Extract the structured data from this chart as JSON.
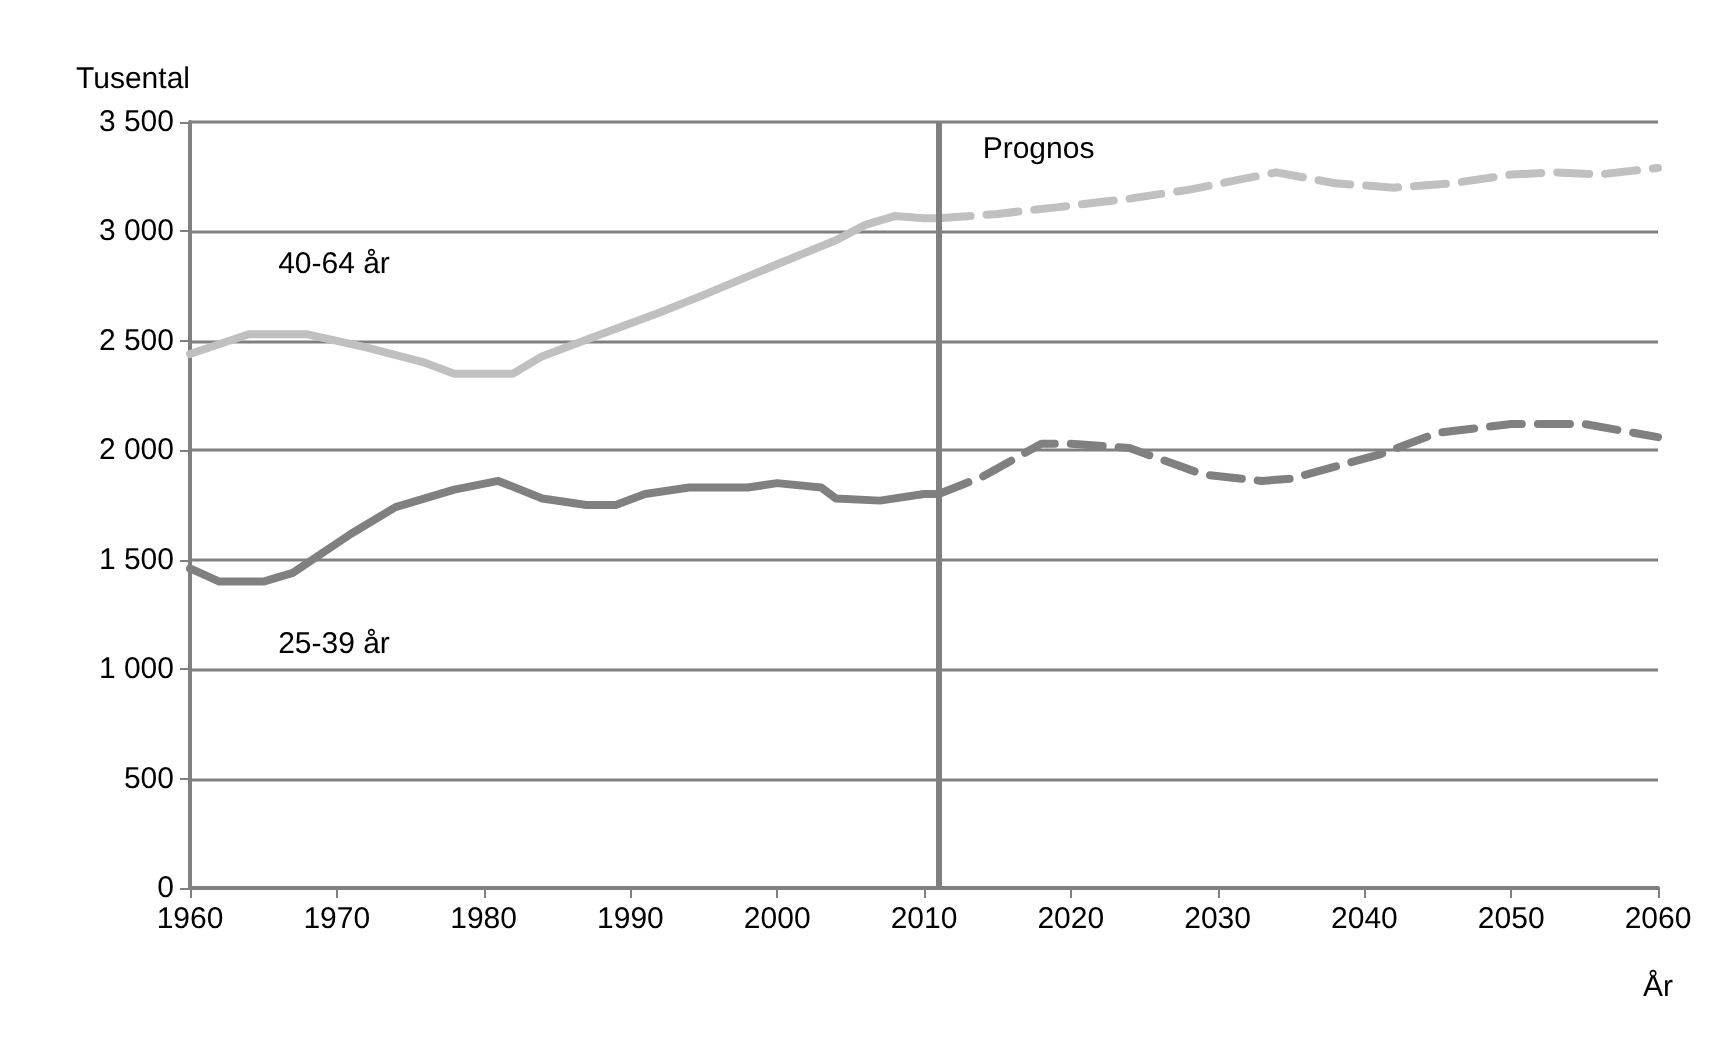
{
  "chart_data": {
    "type": "line",
    "ylabel": "Tusental",
    "xlabel": "År",
    "xlim": [
      1960,
      2060
    ],
    "xticks": [
      1960,
      1970,
      1980,
      1990,
      2000,
      2010,
      2020,
      2030,
      2040,
      2050,
      2060
    ],
    "ylim": [
      0,
      3500
    ],
    "yticks": [
      0,
      500,
      {
        "value": 1000,
        "label": "1 000"
      },
      {
        "value": 1500,
        "label": "1 500"
      },
      {
        "value": 2000,
        "label": "2 000"
      },
      {
        "value": 2500,
        "label": "2 500"
      },
      {
        "value": 3000,
        "label": "3 000"
      },
      {
        "value": 3500,
        "label": "3 500"
      }
    ],
    "grid": "y",
    "marker": "none",
    "series": [
      {
        "name": "40-64 år",
        "color": "#c0c0c0",
        "line_style": "solid",
        "x": [
          1960,
          1964,
          1968,
          1972,
          1976,
          1978,
          1982,
          1984,
          1988,
          1992,
          1995,
          2000,
          2004,
          2006,
          2008,
          2010,
          2011
        ],
        "values": [
          2440,
          2530,
          2530,
          2470,
          2400,
          2350,
          2350,
          2430,
          2530,
          2630,
          2710,
          2850,
          2960,
          3030,
          3070,
          3060,
          3060
        ]
      },
      {
        "color": "#c0c0c0",
        "line_style": "dashed",
        "x": [
          2011,
          2015,
          2019,
          2024,
          2028,
          2034,
          2038,
          2042,
          2046,
          2050,
          2053,
          2056,
          2060
        ],
        "values": [
          3060,
          3080,
          3110,
          3150,
          3190,
          3270,
          3220,
          3200,
          3220,
          3260,
          3270,
          3260,
          3290
        ]
      },
      {
        "name": "25-39 år",
        "color": "#808080",
        "line_style": "solid",
        "x": [
          1960,
          1962,
          1965,
          1967,
          1971,
          1974,
          1978,
          1981,
          1984,
          1987,
          1989,
          1991,
          1994,
          1998,
          2000,
          2003,
          2004,
          2007,
          2010,
          2011
        ],
        "values": [
          1460,
          1400,
          1400,
          1440,
          1620,
          1740,
          1820,
          1860,
          1780,
          1750,
          1750,
          1800,
          1830,
          1830,
          1850,
          1830,
          1780,
          1770,
          1800,
          1800
        ]
      },
      {
        "color": "#808080",
        "line_style": "dashed",
        "x": [
          2011,
          2014,
          2018,
          2020,
          2024,
          2029,
          2033,
          2035,
          2041,
          2045,
          2050,
          2055,
          2060
        ],
        "values": [
          1800,
          1880,
          2030,
          2030,
          2010,
          1890,
          1860,
          1870,
          1980,
          2080,
          2120,
          2120,
          2060
        ]
      }
    ],
    "ref_lines": [
      {
        "axis": "x",
        "value": 2011,
        "label": "Prognos",
        "color": "#808080",
        "line_style": "solid"
      }
    ]
  }
}
